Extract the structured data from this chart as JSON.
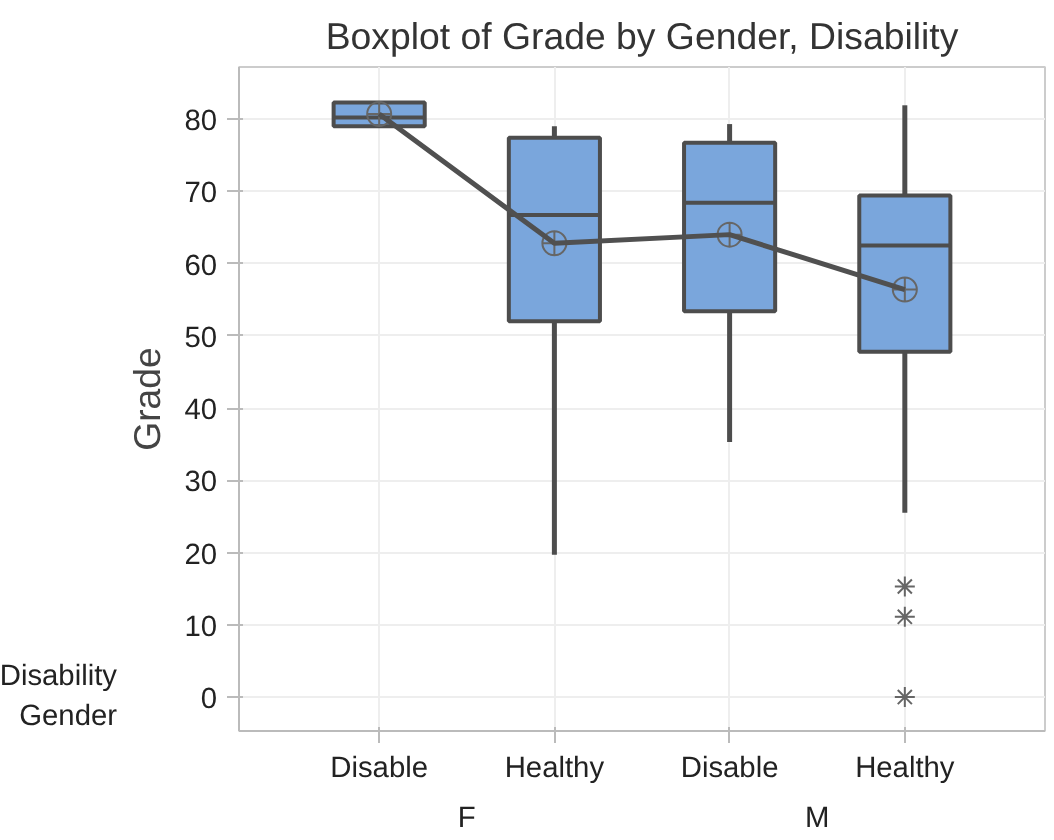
{
  "chart_data": {
    "type": "box",
    "title": "Boxplot of Grade by Gender, Disability",
    "ylabel": "Grade",
    "xlabel": "Gender",
    "categories": [
      "Disable",
      "Healthy",
      "Disable",
      "Healthy"
    ],
    "annotations": [
      "Disability",
      "F",
      "M"
    ],
    "ylim": [
      -4.7,
      87.2
    ],
    "yticks": [
      0,
      10,
      20,
      30,
      40,
      50,
      60,
      70,
      80
    ],
    "grid": true,
    "series": [
      {
        "type": "box",
        "color": "#7aa6dc",
        "boxes": [
          {
            "low": 79,
            "q1": 79,
            "median": 80.2,
            "q3": 82.3,
            "high": 82.3,
            "mean": 80.7
          },
          {
            "low": 19.7,
            "q1": 52,
            "median": 66.7,
            "q3": 77.4,
            "high": 79,
            "mean": 62.8
          },
          {
            "low": 35.3,
            "q1": 53.4,
            "median": 68.4,
            "q3": 76.7,
            "high": 79.3,
            "mean": 64
          },
          {
            "low": 25.5,
            "q1": 47.8,
            "median": 62.5,
            "q3": 69.4,
            "high": 81.9,
            "mean": 56.4,
            "outliers": [
              15.3,
              11.1,
              0
            ]
          }
        ]
      },
      {
        "type": "line",
        "color": "#505050",
        "values": [
          80.7,
          62.8,
          64,
          56.4
        ]
      }
    ]
  }
}
